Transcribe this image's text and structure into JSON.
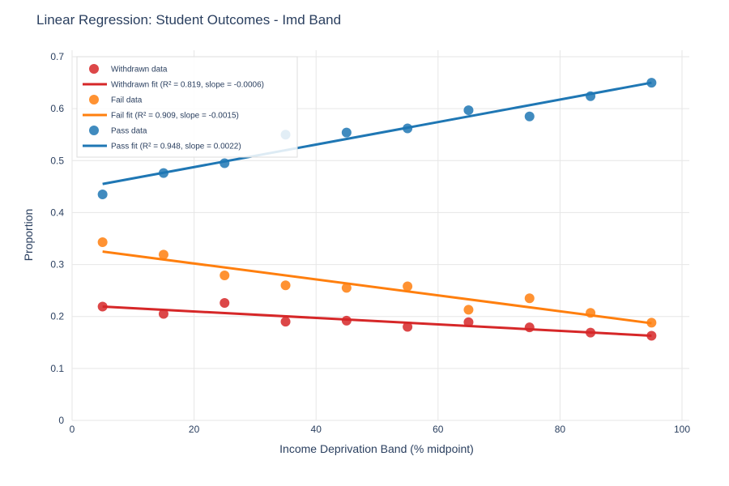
{
  "chart_data": {
    "type": "scatter",
    "title": "Linear Regression: Student Outcomes - Imd Band",
    "xlabel": "Income Deprivation Band (% midpoint)",
    "ylabel": "Proportion",
    "xlim": [
      0,
      100
    ],
    "ylim": [
      0,
      0.7
    ],
    "xticks": [
      0,
      20,
      40,
      60,
      80,
      100
    ],
    "yticks": [
      0,
      0.1,
      0.2,
      0.3,
      0.4,
      0.5,
      0.6,
      0.7
    ],
    "x_tick_labels": [
      "0",
      "20",
      "40",
      "60",
      "80",
      "100"
    ],
    "y_tick_labels": [
      "0",
      "0.1",
      "0.2",
      "0.3",
      "0.4",
      "0.5",
      "0.6",
      "0.7"
    ],
    "grid": true,
    "legend_position": "top-left",
    "x": [
      5,
      15,
      25,
      35,
      45,
      55,
      65,
      75,
      85,
      95
    ],
    "series": [
      {
        "key": "withdrawn",
        "name": "Withdrawn data",
        "fit_name": "Withdrawn fit (R² = 0.819, slope = -0.0006)",
        "color": "#d62728",
        "values": [
          0.219,
          0.205,
          0.226,
          0.19,
          0.192,
          0.18,
          0.189,
          0.179,
          0.169,
          0.163
        ],
        "fit": [
          0.219,
          0.163
        ]
      },
      {
        "key": "fail",
        "name": "Fail data",
        "fit_name": "Fail fit (R² = 0.909, slope = -0.0015)",
        "color": "#ff7f0e",
        "values": [
          0.343,
          0.319,
          0.279,
          0.26,
          0.255,
          0.258,
          0.213,
          0.235,
          0.207,
          0.188
        ],
        "fit": [
          0.325,
          0.187
        ]
      },
      {
        "key": "pass",
        "name": "Pass data",
        "fit_name": "Pass fit (R² = 0.948, slope = 0.0022)",
        "color": "#1f77b4",
        "values": [
          0.435,
          0.476,
          0.495,
          0.55,
          0.554,
          0.562,
          0.597,
          0.585,
          0.624,
          0.65
        ],
        "fit": [
          0.455,
          0.65
        ]
      }
    ]
  }
}
